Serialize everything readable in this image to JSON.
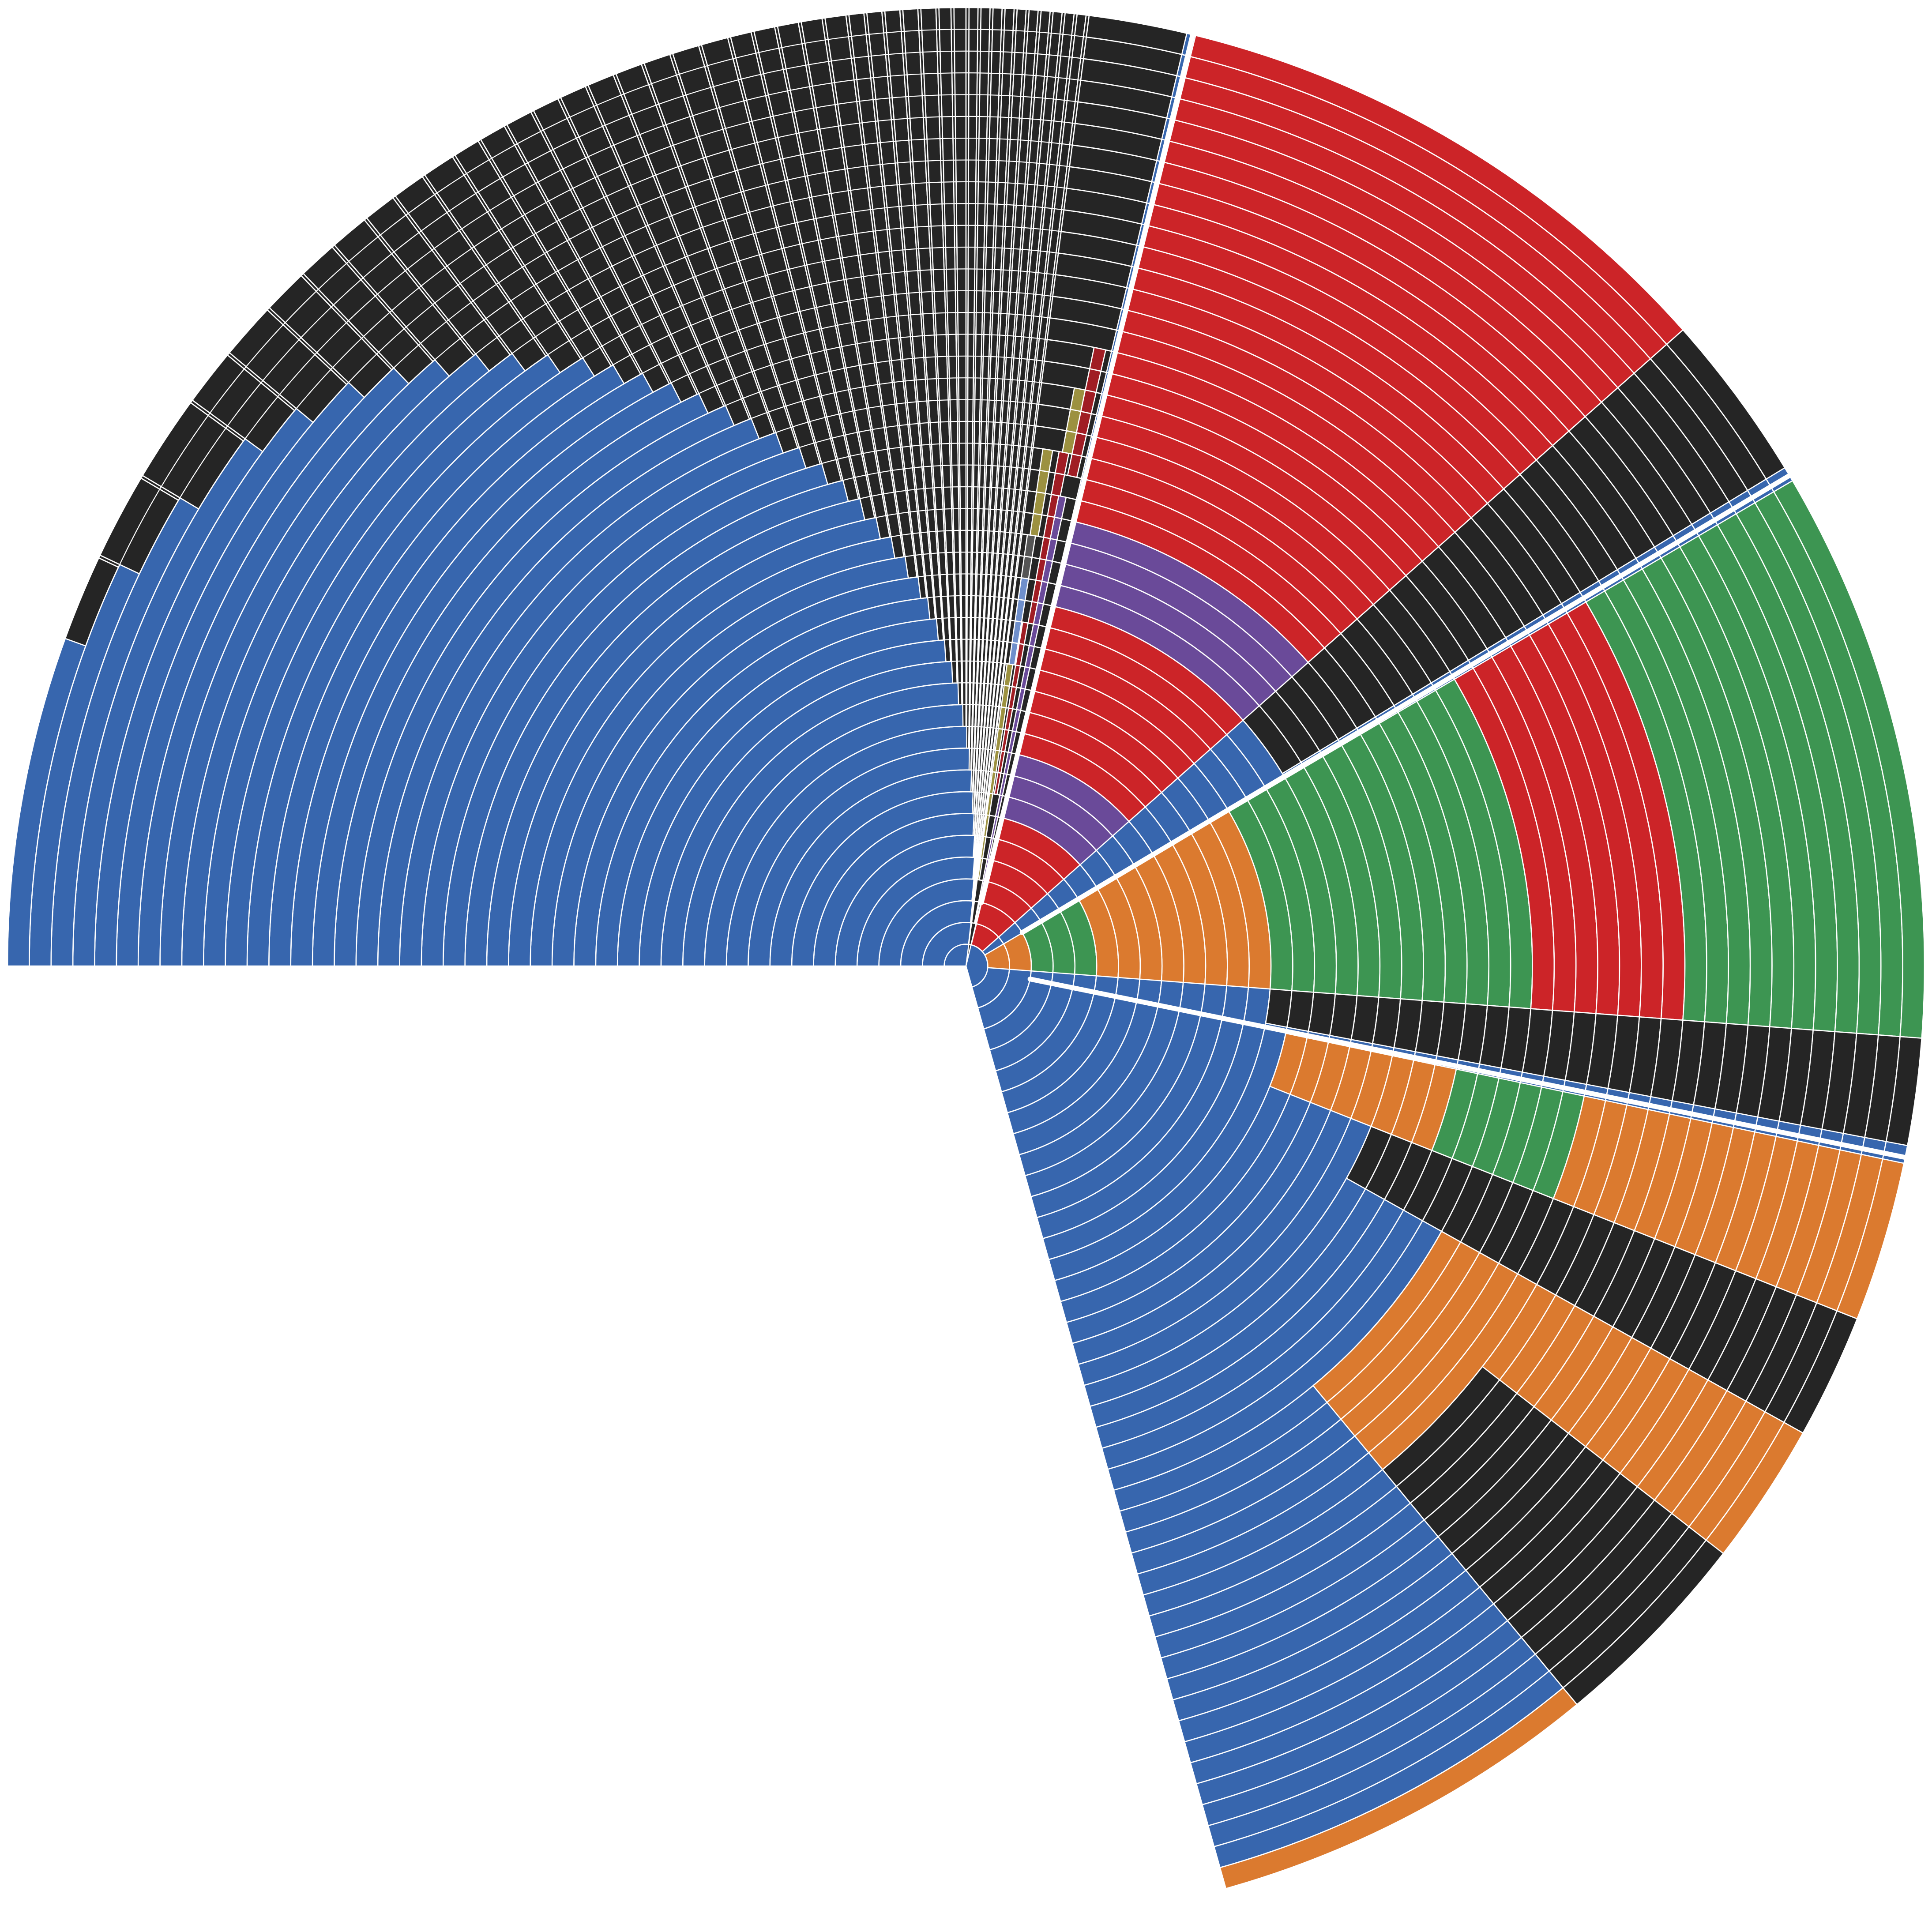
{
  "chart_data": {
    "type": "sunburst",
    "ring_count": 44,
    "rotation_deg": 90,
    "direction": "clockwise",
    "colors": {
      "blue": "#3766ae",
      "orange": "#db7a2f",
      "green": "#3d9552",
      "red": "#cc2428",
      "purple": "#6a4a99",
      "black": "#252525",
      "olive": "#9c9140",
      "darkred": "#a01d24",
      "lightblue": "#6f8fcb",
      "gray": "#555555",
      "gap": "#ffffff"
    },
    "sectors": [
      {
        "id": "blue-main",
        "color": "blue",
        "start": 0.0,
        "end": 0.7063,
        "ring_from": 0,
        "ring_to": 44,
        "outer_ring_fill": "black",
        "outer_cuts": [
          [
            0.0,
            44
          ],
          [
            0.055,
            44
          ],
          [
            0.0555,
            43
          ],
          [
            0.07,
            43
          ],
          [
            0.0705,
            42
          ],
          [
            0.085,
            42
          ],
          [
            0.0855,
            41
          ],
          [
            0.1,
            41
          ],
          [
            0.1005,
            40
          ],
          [
            0.11,
            40
          ],
          [
            0.1105,
            39
          ],
          [
            0.12,
            39
          ],
          [
            0.1205,
            38
          ],
          [
            0.128,
            38
          ],
          [
            0.1285,
            37
          ],
          [
            0.135,
            37
          ],
          [
            0.1355,
            36
          ],
          [
            0.142,
            36
          ],
          [
            0.1425,
            35
          ],
          [
            0.148,
            35
          ],
          [
            0.1485,
            34
          ],
          [
            0.154,
            34
          ],
          [
            0.1545,
            33
          ],
          [
            0.16,
            33
          ],
          [
            0.1605,
            32
          ],
          [
            0.165,
            32
          ],
          [
            0.1655,
            31
          ],
          [
            0.17,
            31
          ],
          [
            0.1705,
            30
          ],
          [
            0.175,
            30
          ],
          [
            0.1755,
            29
          ],
          [
            0.18,
            29
          ],
          [
            0.1805,
            28
          ],
          [
            0.185,
            28
          ],
          [
            0.1855,
            27
          ],
          [
            0.19,
            27
          ],
          [
            0.1905,
            26
          ],
          [
            0.195,
            26
          ],
          [
            0.1955,
            25
          ],
          [
            0.2,
            25
          ],
          [
            0.2005,
            24
          ],
          [
            0.205,
            24
          ],
          [
            0.2055,
            23
          ],
          [
            0.21,
            23
          ],
          [
            0.2105,
            22
          ],
          [
            0.214,
            22
          ],
          [
            0.2145,
            21
          ],
          [
            0.218,
            21
          ],
          [
            0.2185,
            20
          ],
          [
            0.222,
            20
          ],
          [
            0.2225,
            19
          ],
          [
            0.226,
            19
          ],
          [
            0.2265,
            18
          ],
          [
            0.23,
            18
          ],
          [
            0.2305,
            17
          ],
          [
            0.233,
            17
          ],
          [
            0.2335,
            16
          ],
          [
            0.236,
            16
          ],
          [
            0.2365,
            15
          ],
          [
            0.239,
            15
          ],
          [
            0.2395,
            14
          ],
          [
            0.242,
            14
          ],
          [
            0.2425,
            13
          ],
          [
            0.245,
            13
          ],
          [
            0.2455,
            12
          ],
          [
            0.2475,
            12
          ],
          [
            0.248,
            11
          ],
          [
            0.25,
            11
          ],
          [
            0.2505,
            10
          ],
          [
            0.252,
            10
          ],
          [
            0.2525,
            9
          ],
          [
            0.254,
            9
          ],
          [
            0.2545,
            8
          ],
          [
            0.256,
            8
          ],
          [
            0.2565,
            7
          ],
          [
            0.258,
            7
          ],
          [
            0.2585,
            6
          ],
          [
            0.26,
            6
          ],
          [
            0.2605,
            5
          ],
          [
            0.262,
            5
          ],
          [
            0.2625,
            4
          ],
          [
            0.264,
            4
          ],
          [
            0.2645,
            3
          ],
          [
            0.266,
            3
          ],
          [
            0.2665,
            2
          ],
          [
            0.268,
            2
          ],
          [
            0.2685,
            1
          ],
          [
            0.27,
            1
          ],
          [
            0.2705,
            0
          ]
        ]
      },
      {
        "id": "small-right-mixed",
        "color": "black",
        "start": 0.2705,
        "end": 0.287,
        "ring_from": 0,
        "ring_to": 44
      },
      {
        "id": "olive-band-1",
        "color": "olive",
        "start": 0.2715,
        "end": 0.2745,
        "ring_from": 4,
        "ring_to": 14
      },
      {
        "id": "lightblue-band",
        "color": "lightblue",
        "start": 0.2725,
        "end": 0.2755,
        "ring_from": 14,
        "ring_to": 18
      },
      {
        "id": "gray-band",
        "color": "gray",
        "start": 0.2725,
        "end": 0.2755,
        "ring_from": 18,
        "ring_to": 20
      },
      {
        "id": "olive-band-2",
        "color": "olive",
        "start": 0.2735,
        "end": 0.2765,
        "ring_from": 20,
        "ring_to": 24
      },
      {
        "id": "darkred-band-1",
        "color": "darkred",
        "start": 0.276,
        "end": 0.2785,
        "ring_from": 8,
        "ring_to": 16
      },
      {
        "id": "darkred-band-2",
        "color": "darkred",
        "start": 0.2785,
        "end": 0.2815,
        "ring_from": 16,
        "ring_to": 24
      },
      {
        "id": "olive-band-3",
        "color": "olive",
        "start": 0.2795,
        "end": 0.2825,
        "ring_from": 24,
        "ring_to": 27
      },
      {
        "id": "purple-thin",
        "color": "purple",
        "start": 0.281,
        "end": 0.2835,
        "ring_from": 2,
        "ring_to": 22
      },
      {
        "id": "darkred-band-3",
        "color": "darkred",
        "start": 0.2825,
        "end": 0.2855,
        "ring_from": 23,
        "ring_to": 29
      },
      {
        "id": "red-sector",
        "color": "red",
        "start": 0.2885,
        "end": 0.3845,
        "ring_from": 1,
        "ring_to": 44,
        "alt": [
          [
            7,
            10,
            "purple"
          ],
          [
            17,
            21,
            "purple"
          ]
        ]
      },
      {
        "id": "red-sector-black-tail",
        "color": "black",
        "start": 0.3845,
        "end": 0.413,
        "ring_from": 17,
        "ring_to": 44
      },
      {
        "id": "green-sector",
        "color": "green",
        "start": 0.4155,
        "end": 0.512,
        "ring_from": 1,
        "ring_to": 44,
        "alt": [
          [
            0,
            3,
            "orange"
          ],
          [
            3,
            6,
            "green"
          ],
          [
            6,
            14,
            "orange"
          ],
          [
            26,
            33,
            "red"
          ]
        ]
      },
      {
        "id": "green-sector-black-tail",
        "color": "black",
        "start": 0.512,
        "end": 0.53,
        "ring_from": 14,
        "ring_to": 44
      },
      {
        "id": "orange-sector",
        "color": "orange",
        "start": 0.533,
        "end": 0.56,
        "ring_from": 15,
        "ring_to": 44,
        "alt": [
          [
            23,
            29,
            "green"
          ]
        ]
      },
      {
        "id": "orange-sector-black",
        "color": "black",
        "start": 0.56,
        "end": 0.581,
        "ring_from": 20,
        "ring_to": 44
      },
      {
        "id": "orange-left",
        "color": "orange",
        "start": 0.581,
        "end": 0.64,
        "ring_from": 25,
        "ring_to": 44
      },
      {
        "id": "orange-left-black",
        "color": "black",
        "start": 0.605,
        "end": 0.64,
        "ring_from": 30,
        "ring_to": 44
      },
      {
        "id": "orange-outer-arc",
        "color": "orange",
        "start": 0.64,
        "end": 0.7063,
        "ring_from": 43,
        "ring_to": 44
      }
    ],
    "gaps": [
      0.288,
      0.4145,
      0.532
    ]
  }
}
